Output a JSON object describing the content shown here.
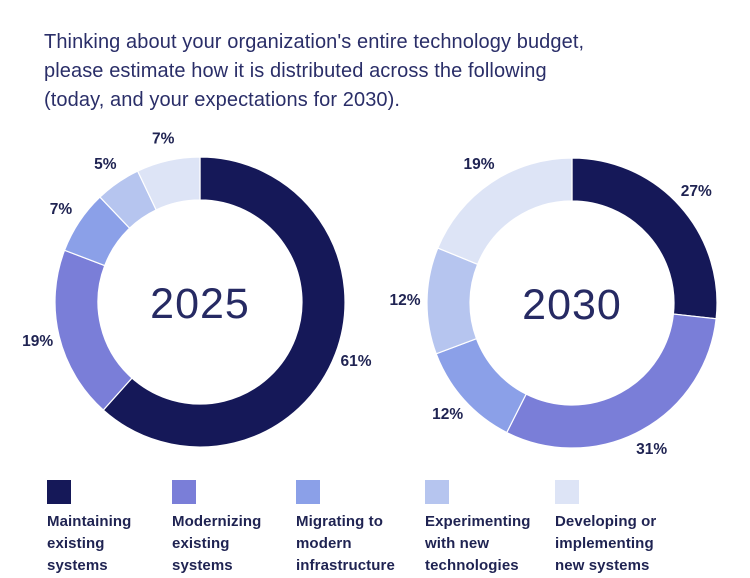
{
  "title": "Thinking about your organization's entire technology budget, please estimate how it is distributed across the following (today, and your expectations for 2030).",
  "theme": {
    "background": "#ffffff",
    "title_color": "#2a2e68",
    "label_color": "#1f2352",
    "year_color": "#262a63"
  },
  "palette": [
    "#151858",
    "#7a7ed8",
    "#8ba0e8",
    "#b6c5ef",
    "#dde4f6"
  ],
  "categories": [
    "Maintaining existing systems",
    "Modernizing existing systems",
    "Migrating to modern infrastructure",
    "Experimenting with new technologies",
    "Developing or implementing new systems"
  ],
  "chart_data": [
    {
      "type": "pie",
      "subtype": "donut",
      "center_label": "2025",
      "categories": [
        "Maintaining existing systems",
        "Modernizing existing systems",
        "Migrating to modern infrastructure",
        "Experimenting with new technologies",
        "Developing or implementing new systems"
      ],
      "values": [
        61,
        19,
        7,
        5,
        7
      ],
      "labels": [
        "61%",
        "19%",
        "7%",
        "5%",
        "7%"
      ],
      "colors": [
        "#151858",
        "#7a7ed8",
        "#8ba0e8",
        "#b6c5ef",
        "#dde4f6"
      ],
      "start_angle_deg": 0,
      "direction": "clockwise",
      "legend_position": "bottom"
    },
    {
      "type": "pie",
      "subtype": "donut",
      "center_label": "2030",
      "categories": [
        "Maintaining existing systems",
        "Modernizing existing systems",
        "Migrating to modern infrastructure",
        "Experimenting with new technologies",
        "Developing or implementing new systems"
      ],
      "values": [
        27,
        31,
        12,
        12,
        19
      ],
      "labels": [
        "27%",
        "31%",
        "12%",
        "12%",
        "19%"
      ],
      "colors": [
        "#151858",
        "#7a7ed8",
        "#8ba0e8",
        "#b6c5ef",
        "#dde4f6"
      ],
      "start_angle_deg": 0,
      "direction": "clockwise",
      "legend_position": "bottom"
    }
  ],
  "legend": {
    "items": [
      {
        "label": "Maintaining existing systems",
        "color": "#151858"
      },
      {
        "label": "Modernizing existing systems",
        "color": "#7a7ed8"
      },
      {
        "label": "Migrating to modern infrastructure",
        "color": "#8ba0e8"
      },
      {
        "label": "Experimenting with new technologies",
        "color": "#b6c5ef"
      },
      {
        "label": "Developing or implementing new systems",
        "color": "#dde4f6"
      }
    ]
  }
}
